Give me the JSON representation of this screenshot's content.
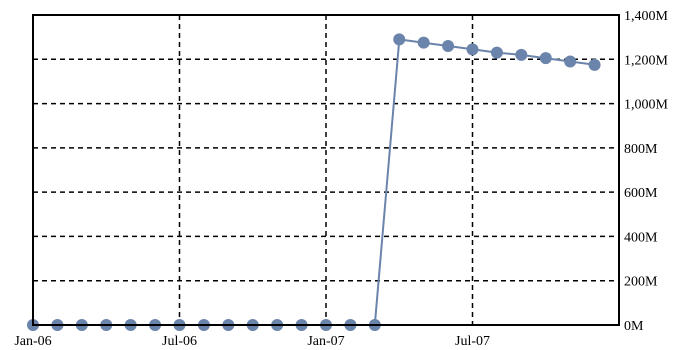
{
  "chart_data": {
    "type": "line",
    "x": [
      "2006-01",
      "2006-02",
      "2006-03",
      "2006-04",
      "2006-05",
      "2006-06",
      "2006-07",
      "2006-08",
      "2006-09",
      "2006-10",
      "2006-11",
      "2006-12",
      "2007-01",
      "2007-02",
      "2007-03",
      "2007-04",
      "2007-05",
      "2007-06",
      "2007-07",
      "2007-08",
      "2007-09",
      "2007-10",
      "2007-11",
      "2007-12"
    ],
    "series": [
      {
        "values": [
          0,
          0,
          0,
          0,
          0,
          0,
          0,
          0,
          0,
          0,
          0,
          0,
          0,
          0,
          0,
          1290,
          1275,
          1260,
          1245,
          1230,
          1220,
          1205,
          1190,
          1175
        ],
        "color": "#6b84ab"
      }
    ],
    "x_ticks": [
      {
        "x": "2006-01",
        "label": "Jan-06"
      },
      {
        "x": "2006-07",
        "label": "Jul-06"
      },
      {
        "x": "2007-01",
        "label": "Jan-07"
      },
      {
        "x": "2007-07",
        "label": "Jul-07"
      }
    ],
    "y_ticks": [
      {
        "value": 0,
        "label": "0M"
      },
      {
        "value": 200,
        "label": "200M"
      },
      {
        "value": 400,
        "label": "400M"
      },
      {
        "value": 600,
        "label": "600M"
      },
      {
        "value": 800,
        "label": "800M"
      },
      {
        "value": 1000,
        "label": "1,000M"
      },
      {
        "value": 1200,
        "label": "1,200M"
      },
      {
        "value": 1400,
        "label": "1,400M"
      }
    ],
    "ylim": [
      0,
      1400
    ],
    "x_range": [
      "2006-01",
      "2008-01"
    ],
    "y_axis_position": "right",
    "grid": true,
    "title": "",
    "xlabel": "",
    "ylabel": ""
  }
}
